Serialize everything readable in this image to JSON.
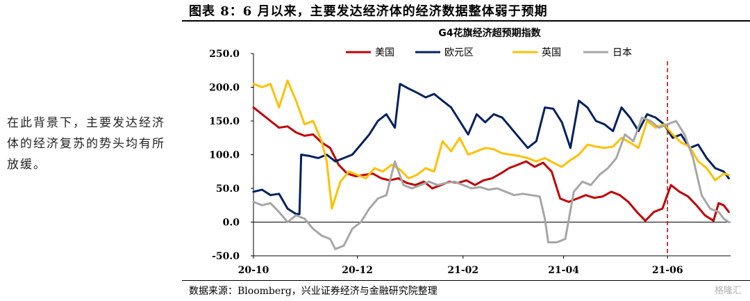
{
  "figure_title": "图表 8：6 月以来，主要发达经济体的经济数据整体弱于预期",
  "side_note": "在此背景下，主要发达经济体的经济复苏的势头均有所放缓。",
  "source": "数据来源：Bloomberg，兴业证券经济与金融研究院整理",
  "watermark": "格隆汇",
  "chart_data": {
    "type": "line",
    "title": "G4花旗经济超预期指数",
    "xlabel": "",
    "ylabel": "",
    "ylim": [
      -50,
      250
    ],
    "yticks": [
      "250.0",
      "200.0",
      "150.0",
      "100.0",
      "50.0",
      "0.0",
      "-50.0"
    ],
    "ytick_values": [
      250,
      200,
      150,
      100,
      50,
      0,
      -50
    ],
    "xlim": [
      "2020-10-01",
      "2021-07-08"
    ],
    "xticks": [
      "20-10",
      "20-12",
      "21-02",
      "21-04",
      "21-06"
    ],
    "xtick_dates": [
      "2020-10-01",
      "2020-12-01",
      "2021-02-01",
      "2021-04-01",
      "2021-06-01"
    ],
    "legend_position": "top",
    "marker_line": {
      "date": "2021-06-01",
      "color": "#c00000",
      "style": "dashed"
    },
    "series": [
      {
        "name": "美国",
        "color": "#c00000",
        "points": [
          [
            "2020-10-01",
            170
          ],
          [
            "2020-10-06",
            160
          ],
          [
            "2020-10-11",
            150
          ],
          [
            "2020-10-16",
            140
          ],
          [
            "2020-10-21",
            142
          ],
          [
            "2020-10-26",
            133
          ],
          [
            "2020-10-31",
            128
          ],
          [
            "2020-11-05",
            130
          ],
          [
            "2020-11-10",
            118
          ],
          [
            "2020-11-15",
            110
          ],
          [
            "2020-11-20",
            85
          ],
          [
            "2020-11-25",
            72
          ],
          [
            "2020-11-30",
            68
          ],
          [
            "2020-12-05",
            70
          ],
          [
            "2020-12-10",
            72
          ],
          [
            "2020-12-15",
            65
          ],
          [
            "2020-12-20",
            62
          ],
          [
            "2020-12-25",
            65
          ],
          [
            "2020-12-30",
            58
          ],
          [
            "2021-01-04",
            55
          ],
          [
            "2021-01-09",
            60
          ],
          [
            "2021-01-14",
            50
          ],
          [
            "2021-01-19",
            55
          ],
          [
            "2021-01-24",
            60
          ],
          [
            "2021-01-29",
            58
          ],
          [
            "2021-02-03",
            62
          ],
          [
            "2021-02-08",
            55
          ],
          [
            "2021-02-13",
            62
          ],
          [
            "2021-02-18",
            65
          ],
          [
            "2021-02-23",
            72
          ],
          [
            "2021-02-28",
            80
          ],
          [
            "2021-03-05",
            85
          ],
          [
            "2021-03-10",
            90
          ],
          [
            "2021-03-15",
            82
          ],
          [
            "2021-03-20",
            88
          ],
          [
            "2021-03-25",
            75
          ],
          [
            "2021-03-30",
            35
          ],
          [
            "2021-04-04",
            30
          ],
          [
            "2021-04-09",
            35
          ],
          [
            "2021-04-14",
            40
          ],
          [
            "2021-04-19",
            36
          ],
          [
            "2021-04-24",
            38
          ],
          [
            "2021-04-29",
            45
          ],
          [
            "2021-05-04",
            40
          ],
          [
            "2021-05-09",
            30
          ],
          [
            "2021-05-14",
            15
          ],
          [
            "2021-05-19",
            2
          ],
          [
            "2021-05-24",
            15
          ],
          [
            "2021-05-29",
            20
          ],
          [
            "2021-06-03",
            55
          ],
          [
            "2021-06-08",
            45
          ],
          [
            "2021-06-13",
            38
          ],
          [
            "2021-06-18",
            25
          ],
          [
            "2021-06-23",
            10
          ],
          [
            "2021-06-28",
            2
          ],
          [
            "2021-07-01",
            28
          ],
          [
            "2021-07-04",
            25
          ],
          [
            "2021-07-07",
            15
          ]
        ]
      },
      {
        "name": "欧元区",
        "color": "#002060",
        "points": [
          [
            "2020-10-01",
            45
          ],
          [
            "2020-10-06",
            48
          ],
          [
            "2020-10-11",
            40
          ],
          [
            "2020-10-16",
            42
          ],
          [
            "2020-10-21",
            20
          ],
          [
            "2020-10-26",
            12
          ],
          [
            "2020-10-28",
            12
          ],
          [
            "2020-10-29",
            100
          ],
          [
            "2020-11-03",
            98
          ],
          [
            "2020-11-08",
            95
          ],
          [
            "2020-11-13",
            100
          ],
          [
            "2020-11-18",
            90
          ],
          [
            "2020-11-23",
            95
          ],
          [
            "2020-11-28",
            100
          ],
          [
            "2020-12-03",
            115
          ],
          [
            "2020-12-08",
            130
          ],
          [
            "2020-12-13",
            150
          ],
          [
            "2020-12-18",
            160
          ],
          [
            "2020-12-23",
            140
          ],
          [
            "2020-12-26",
            205
          ],
          [
            "2020-12-31",
            198
          ],
          [
            "2021-01-05",
            192
          ],
          [
            "2021-01-10",
            185
          ],
          [
            "2021-01-15",
            190
          ],
          [
            "2021-01-20",
            180
          ],
          [
            "2021-01-25",
            170
          ],
          [
            "2021-01-30",
            150
          ],
          [
            "2021-02-04",
            130
          ],
          [
            "2021-02-09",
            160
          ],
          [
            "2021-02-14",
            148
          ],
          [
            "2021-02-19",
            160
          ],
          [
            "2021-02-24",
            155
          ],
          [
            "2021-03-01",
            140
          ],
          [
            "2021-03-06",
            125
          ],
          [
            "2021-03-11",
            110
          ],
          [
            "2021-03-16",
            120
          ],
          [
            "2021-03-21",
            170
          ],
          [
            "2021-03-26",
            168
          ],
          [
            "2021-03-31",
            148
          ],
          [
            "2021-04-05",
            110
          ],
          [
            "2021-04-10",
            180
          ],
          [
            "2021-04-15",
            170
          ],
          [
            "2021-04-20",
            150
          ],
          [
            "2021-04-25",
            145
          ],
          [
            "2021-04-30",
            135
          ],
          [
            "2021-05-05",
            170
          ],
          [
            "2021-05-10",
            155
          ],
          [
            "2021-05-15",
            135
          ],
          [
            "2021-05-20",
            160
          ],
          [
            "2021-05-25",
            155
          ],
          [
            "2021-05-30",
            145
          ],
          [
            "2021-06-04",
            125
          ],
          [
            "2021-06-09",
            130
          ],
          [
            "2021-06-14",
            110
          ],
          [
            "2021-06-19",
            115
          ],
          [
            "2021-06-24",
            95
          ],
          [
            "2021-06-29",
            80
          ],
          [
            "2021-07-04",
            75
          ],
          [
            "2021-07-07",
            65
          ]
        ]
      },
      {
        "name": "英国",
        "color": "#ffc000",
        "points": [
          [
            "2020-10-01",
            205
          ],
          [
            "2020-10-06",
            200
          ],
          [
            "2020-10-11",
            205
          ],
          [
            "2020-10-16",
            170
          ],
          [
            "2020-10-21",
            210
          ],
          [
            "2020-10-26",
            180
          ],
          [
            "2020-10-31",
            145
          ],
          [
            "2020-11-05",
            150
          ],
          [
            "2020-11-10",
            120
          ],
          [
            "2020-11-13",
            90
          ],
          [
            "2020-11-16",
            20
          ],
          [
            "2020-11-21",
            60
          ],
          [
            "2020-11-26",
            75
          ],
          [
            "2020-12-01",
            70
          ],
          [
            "2020-12-06",
            65
          ],
          [
            "2020-12-11",
            80
          ],
          [
            "2020-12-16",
            75
          ],
          [
            "2020-12-21",
            85
          ],
          [
            "2020-12-26",
            78
          ],
          [
            "2020-12-31",
            65
          ],
          [
            "2021-01-05",
            70
          ],
          [
            "2021-01-10",
            80
          ],
          [
            "2021-01-15",
            75
          ],
          [
            "2021-01-20",
            120
          ],
          [
            "2021-01-25",
            105
          ],
          [
            "2021-01-30",
            125
          ],
          [
            "2021-02-04",
            100
          ],
          [
            "2021-02-09",
            105
          ],
          [
            "2021-02-14",
            110
          ],
          [
            "2021-02-19",
            108
          ],
          [
            "2021-02-24",
            102
          ],
          [
            "2021-03-01",
            100
          ],
          [
            "2021-03-06",
            98
          ],
          [
            "2021-03-11",
            95
          ],
          [
            "2021-03-16",
            90
          ],
          [
            "2021-03-21",
            95
          ],
          [
            "2021-03-26",
            88
          ],
          [
            "2021-03-31",
            82
          ],
          [
            "2021-04-05",
            92
          ],
          [
            "2021-04-10",
            100
          ],
          [
            "2021-04-15",
            115
          ],
          [
            "2021-04-20",
            112
          ],
          [
            "2021-04-25",
            110
          ],
          [
            "2021-04-30",
            112
          ],
          [
            "2021-05-05",
            125
          ],
          [
            "2021-05-10",
            118
          ],
          [
            "2021-05-15",
            110
          ],
          [
            "2021-05-20",
            150
          ],
          [
            "2021-05-25",
            140
          ],
          [
            "2021-05-30",
            145
          ],
          [
            "2021-06-04",
            130
          ],
          [
            "2021-06-09",
            118
          ],
          [
            "2021-06-14",
            112
          ],
          [
            "2021-06-19",
            90
          ],
          [
            "2021-06-24",
            80
          ],
          [
            "2021-06-29",
            62
          ],
          [
            "2021-07-04",
            72
          ],
          [
            "2021-07-07",
            70
          ]
        ]
      },
      {
        "name": "日本",
        "color": "#a6a6a6",
        "points": [
          [
            "2020-10-01",
            30
          ],
          [
            "2020-10-06",
            25
          ],
          [
            "2020-10-11",
            28
          ],
          [
            "2020-10-16",
            15
          ],
          [
            "2020-10-21",
            0
          ],
          [
            "2020-10-26",
            10
          ],
          [
            "2020-10-31",
            5
          ],
          [
            "2020-11-05",
            -10
          ],
          [
            "2020-11-10",
            -20
          ],
          [
            "2020-11-15",
            -25
          ],
          [
            "2020-11-18",
            -40
          ],
          [
            "2020-11-23",
            -35
          ],
          [
            "2020-11-28",
            -10
          ],
          [
            "2020-12-03",
            0
          ],
          [
            "2020-12-08",
            20
          ],
          [
            "2020-12-13",
            35
          ],
          [
            "2020-12-18",
            40
          ],
          [
            "2020-12-23",
            90
          ],
          [
            "2020-12-28",
            55
          ],
          [
            "2021-01-02",
            50
          ],
          [
            "2021-01-07",
            55
          ],
          [
            "2021-01-12",
            60
          ],
          [
            "2021-01-17",
            55
          ],
          [
            "2021-01-22",
            58
          ],
          [
            "2021-01-27",
            60
          ],
          [
            "2021-02-01",
            55
          ],
          [
            "2021-02-06",
            50
          ],
          [
            "2021-02-11",
            52
          ],
          [
            "2021-02-16",
            48
          ],
          [
            "2021-02-21",
            50
          ],
          [
            "2021-02-26",
            45
          ],
          [
            "2021-03-03",
            40
          ],
          [
            "2021-03-08",
            42
          ],
          [
            "2021-03-13",
            40
          ],
          [
            "2021-03-18",
            38
          ],
          [
            "2021-03-21",
            5
          ],
          [
            "2021-03-23",
            -30
          ],
          [
            "2021-03-28",
            -30
          ],
          [
            "2021-04-02",
            -25
          ],
          [
            "2021-04-07",
            45
          ],
          [
            "2021-04-12",
            60
          ],
          [
            "2021-04-17",
            55
          ],
          [
            "2021-04-22",
            70
          ],
          [
            "2021-04-27",
            80
          ],
          [
            "2021-05-02",
            95
          ],
          [
            "2021-05-07",
            130
          ],
          [
            "2021-05-12",
            120
          ],
          [
            "2021-05-17",
            155
          ],
          [
            "2021-05-22",
            150
          ],
          [
            "2021-05-27",
            140
          ],
          [
            "2021-06-01",
            145
          ],
          [
            "2021-06-06",
            150
          ],
          [
            "2021-06-11",
            130
          ],
          [
            "2021-06-16",
            95
          ],
          [
            "2021-06-21",
            40
          ],
          [
            "2021-06-26",
            20
          ],
          [
            "2021-07-01",
            15
          ],
          [
            "2021-07-04",
            5
          ],
          [
            "2021-07-07",
            0
          ]
        ]
      }
    ]
  }
}
